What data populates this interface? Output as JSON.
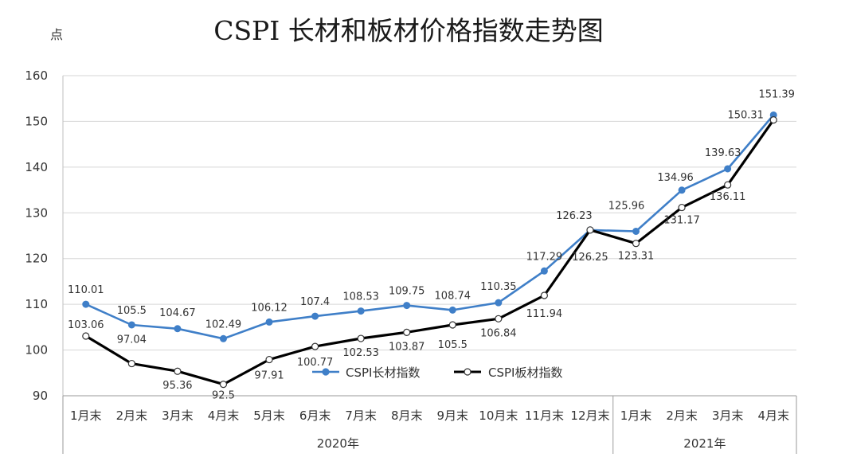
{
  "chart_data": {
    "type": "line",
    "title": "CSPI 长材和板材价格指数走势图",
    "ylabel": "点",
    "xlabel": "",
    "ylim": [
      90,
      160
    ],
    "yticks": [
      90,
      100,
      110,
      120,
      130,
      140,
      150,
      160
    ],
    "grid": true,
    "legend_position": "bottom-center",
    "categories": [
      "1月末",
      "2月末",
      "3月末",
      "4月末",
      "5月末",
      "6月末",
      "7月末",
      "8月末",
      "9月末",
      "10月末",
      "11月末",
      "12月末",
      "1月末",
      "2月末",
      "3月末",
      "4月末"
    ],
    "year_groups": [
      {
        "label": "2020年",
        "count": 12
      },
      {
        "label": "2021年",
        "count": 4
      }
    ],
    "series": [
      {
        "name": "CSPI长材指数",
        "color": "#3f7fc8",
        "marker": "filled",
        "values": [
          110.01,
          105.5,
          104.67,
          102.49,
          106.12,
          107.4,
          108.53,
          109.75,
          108.74,
          110.35,
          117.29,
          126.23,
          125.96,
          134.96,
          139.63,
          151.39
        ],
        "labels": [
          "110.01",
          "105.5",
          "104.67",
          "102.49",
          "106.12",
          "107.4",
          "108.53",
          "109.75",
          "108.74",
          "110.35",
          "117.29",
          "126.23",
          "125.96",
          "134.96",
          "139.63",
          "151.39"
        ]
      },
      {
        "name": "CSPI板材指数",
        "color": "#000000",
        "marker": "hollow",
        "values": [
          103.06,
          97.04,
          95.36,
          92.5,
          97.91,
          100.77,
          102.53,
          103.87,
          105.5,
          106.84,
          111.94,
          126.25,
          123.31,
          131.17,
          136.11,
          150.31
        ],
        "labels": [
          "103.06",
          "97.04",
          "95.36",
          "92.5",
          "97.91",
          "100.77",
          "102.53",
          "103.87",
          "105.5",
          "106.84",
          "111.94",
          "126.25",
          "123.31",
          "131.17",
          "136.11",
          "150.31"
        ]
      }
    ]
  }
}
